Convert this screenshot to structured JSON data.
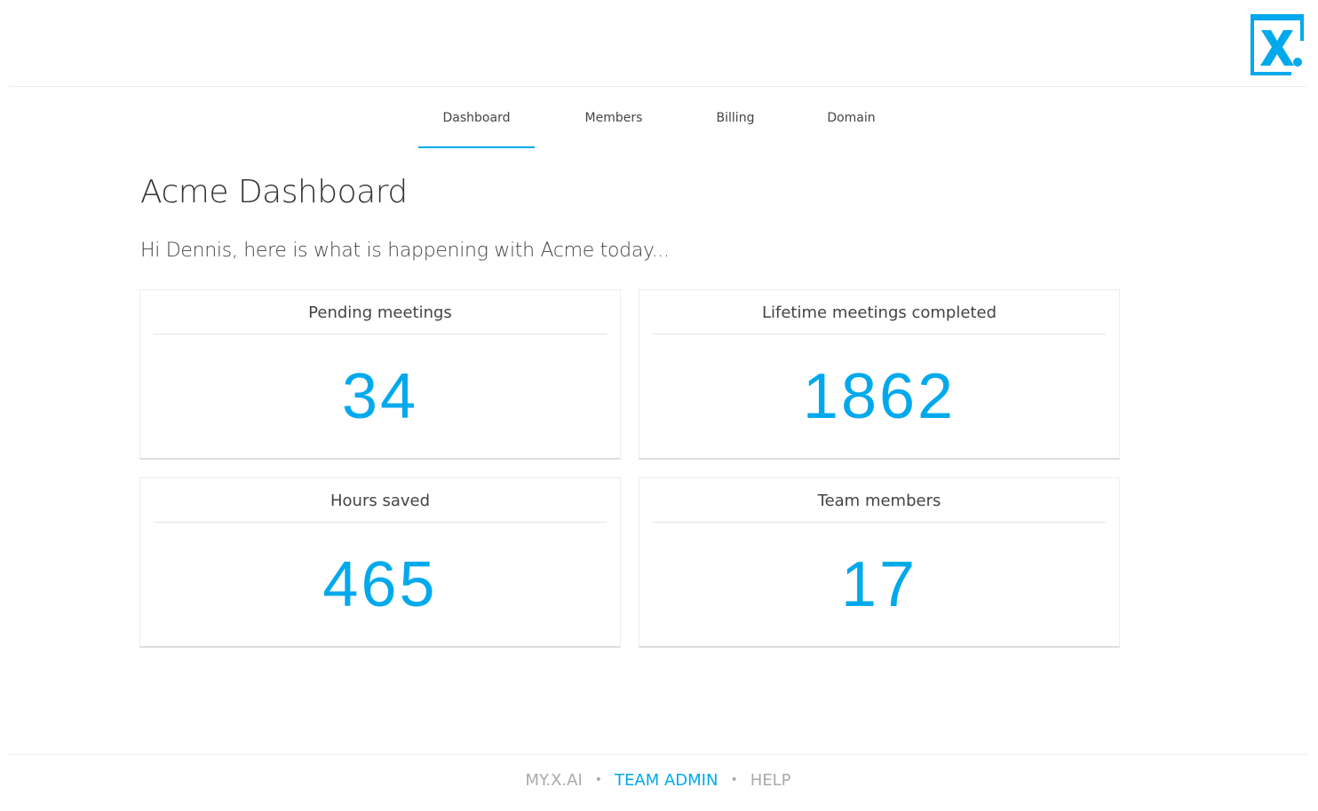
{
  "brand": {
    "logo": "X.",
    "accent": "#00a9ec"
  },
  "nav": [
    {
      "label": "Dashboard",
      "active": true
    },
    {
      "label": "Members"
    },
    {
      "label": "Billing"
    },
    {
      "label": "Domain"
    }
  ],
  "page": {
    "title": "Acme Dashboard",
    "subtitle": "Hi Dennis, here is what is happening with Acme today..."
  },
  "cards": [
    {
      "title": "Pending meetings",
      "value": "34"
    },
    {
      "title": "Lifetime meetings completed",
      "value": "1862"
    },
    {
      "title": "Hours saved",
      "value": "465"
    },
    {
      "title": "Team members",
      "value": "17"
    }
  ],
  "footer": {
    "links": [
      "MY.X.AI",
      "TEAM ADMIN",
      "HELP"
    ],
    "separator": "•"
  }
}
